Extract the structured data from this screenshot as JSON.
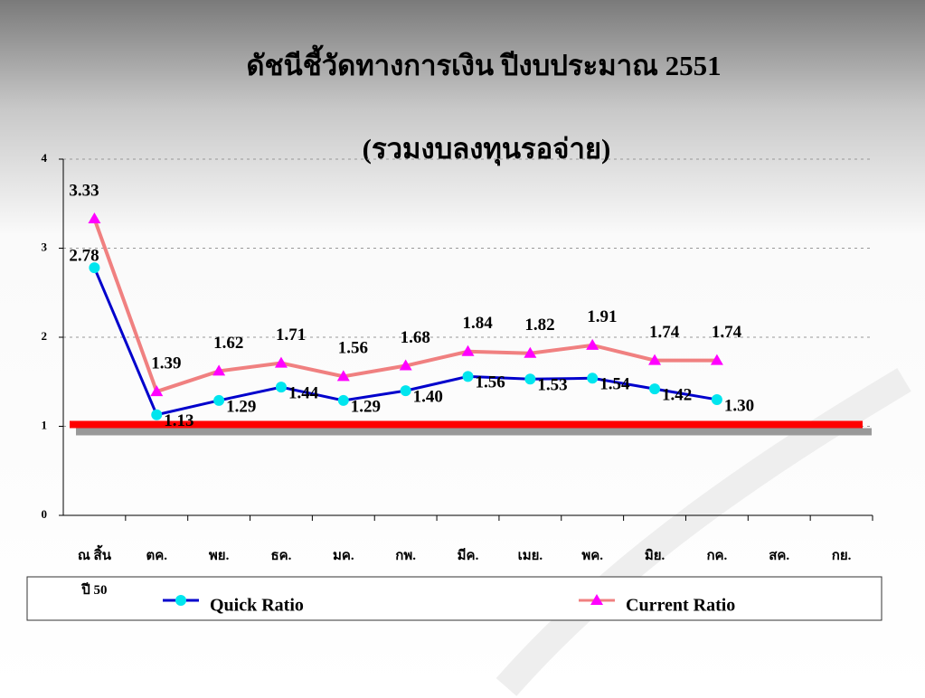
{
  "chart_data": {
    "type": "line",
    "title": "ดัชนีชี้วัดทางการเงิน ปีงบประมาณ 2551",
    "subtitle": "(รวมงบลงทุนรอจ่าย)",
    "categories": [
      "ณ สิ้น\nปี 50",
      "ตค.",
      "พย.",
      "ธค.",
      "มค.",
      "กพ.",
      "มีค.",
      "เมย.",
      "พค.",
      "มิย.",
      "กค.",
      "สค.",
      "กย."
    ],
    "series": [
      {
        "name": "Quick Ratio",
        "color": "#0000cc",
        "marker_color": "#00e5ee",
        "values": [
          2.78,
          1.13,
          1.29,
          1.44,
          1.29,
          1.4,
          1.56,
          1.53,
          1.54,
          1.42,
          1.3,
          null,
          null
        ],
        "value_labels": [
          "2.78",
          "1.13",
          "1.29",
          "1.44",
          "1.29",
          "1.40",
          "1.56",
          "1.53",
          "1.54",
          "1.42",
          "1.30",
          null,
          null
        ]
      },
      {
        "name": "Current Ratio",
        "color": "#f08080",
        "marker_color": "#ff00ff",
        "values": [
          3.33,
          1.39,
          1.62,
          1.71,
          1.56,
          1.68,
          1.84,
          1.82,
          1.91,
          1.74,
          1.74,
          null,
          null
        ],
        "value_labels": [
          "3.33",
          "1.39",
          "1.62",
          "1.71",
          "1.56",
          "1.68",
          "1.84",
          "1.82",
          "1.91",
          "1.74",
          "1.74",
          null,
          null
        ]
      }
    ],
    "reference_line": {
      "value": 1,
      "color": "#ff0000"
    },
    "ylim": [
      0,
      4
    ],
    "yticks": [
      0,
      1,
      2,
      3,
      4
    ],
    "grid": true
  }
}
